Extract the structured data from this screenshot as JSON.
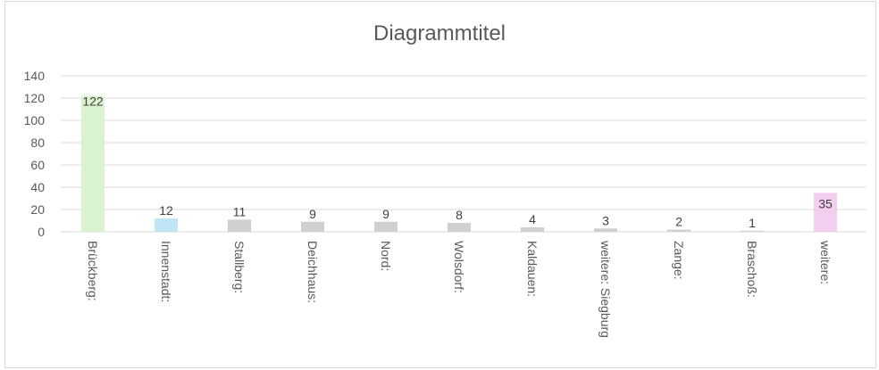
{
  "chart_data": {
    "type": "bar",
    "title": "Diagrammtitel",
    "categories": [
      "Brückberg:",
      "Innenstadt:",
      "Stallberg:",
      "Deichhaus:",
      "Nord:",
      "Wolsdorf:",
      "Kaldauen:",
      "weitere: Siegburg",
      "Zange:",
      "Braschoß:",
      "weitere:"
    ],
    "values": [
      122,
      12,
      11,
      9,
      9,
      8,
      4,
      3,
      2,
      1,
      35
    ],
    "colors": [
      "#d9f2d0",
      "#c0e6f5",
      "#d0d0d0",
      "#d0d0d0",
      "#d0d0d0",
      "#d0d0d0",
      "#d0d0d0",
      "#d0d0d0",
      "#d0d0d0",
      "#d0d0d0",
      "#f2ceef"
    ],
    "ylim": [
      0,
      140
    ],
    "yticks": [
      0,
      20,
      40,
      60,
      80,
      100,
      120,
      140
    ],
    "xlabel": "",
    "ylabel": "",
    "grid": true,
    "legend": "none",
    "data_labels": true
  }
}
